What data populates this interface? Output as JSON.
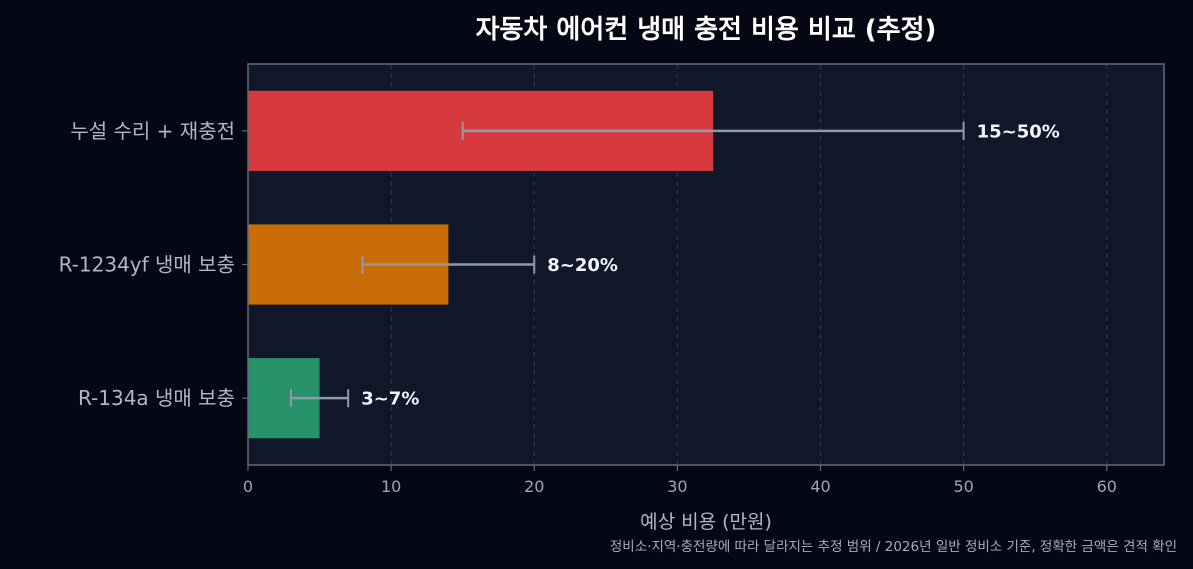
{
  "colors": {
    "page_background": "#050814",
    "plot_background": "#0f1729",
    "grid": "#2a3548",
    "frame": "#5c6b7a",
    "tick_text": "#9aa6b4",
    "axis_label_text": "#aeb7c2",
    "category_text": "#aeb7c2",
    "title_text": "#ffffff",
    "bar_label_text": "#f1f4f8",
    "error_bar": "#8e9aa8",
    "note_text": "#a3adb8"
  },
  "chart_data": {
    "type": "bar",
    "orientation": "horizontal",
    "title": "자동차 에어컨 냉매 충전 비용 비교 (추정)",
    "xlabel": "예상 비용 (만원)",
    "ylabel": "",
    "xlim": [
      0,
      64
    ],
    "x_ticks": [
      0,
      10,
      20,
      30,
      40,
      50,
      60
    ],
    "grid": "vertical-dashed",
    "categories": [
      "누설 수리 + 재충전",
      "R-1234yf 냉매 보충",
      "R-134a 냉매 보충"
    ],
    "values": [
      32.5,
      14,
      5
    ],
    "error_ranges": [
      [
        15,
        50
      ],
      [
        8,
        20
      ],
      [
        3,
        7
      ]
    ],
    "bar_labels": [
      "15~50%",
      "8~20%",
      "3~7%"
    ],
    "bar_colors": [
      "#d63a3e",
      "#c96c08",
      "#27916a"
    ],
    "footnote": "정비소·지역·충전량에 따라 달라지는 추정 범위 / 2026년 일반 정비소 기준, 정확한 금액은 견적 확인"
  }
}
